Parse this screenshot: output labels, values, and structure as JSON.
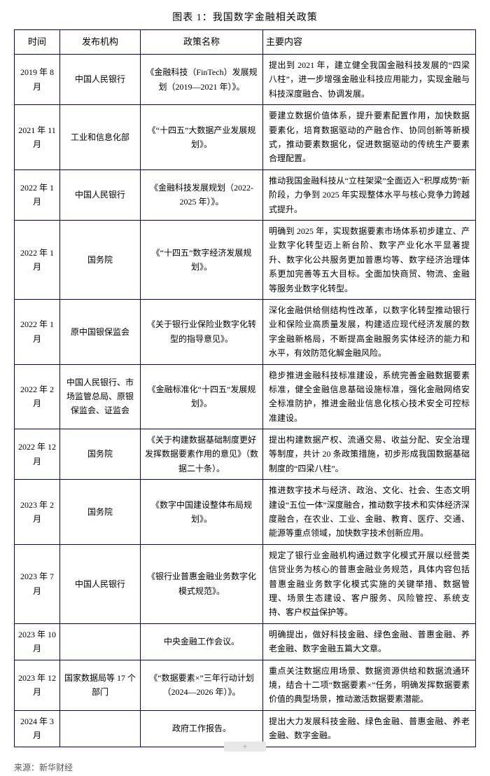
{
  "title": "图表 1：我国数字金融相关政策",
  "columns": [
    "时间",
    "发布机构",
    "政策名称",
    "主要内容"
  ],
  "rows": [
    {
      "time": "2019 年 8 月",
      "org": "中国人民银行",
      "policy": "《金融科技（FinTech）发展规划（2019—2021 年）》。",
      "content": "提出到 2021 年，建立健全我国金融科技发展的“四梁八柱”，进一步增强金融业科技应用能力，实现金融与科技深度融合、协调发展。"
    },
    {
      "time": "2021 年 11 月",
      "org": "工业和信息化部",
      "policy": "《“十四五”大数据产业发展规划》。",
      "content": "要建立数据价值体系，提升要素配置作用，加快数据要素化，培育数据驱动的产融合作、协同创新等新模式，推动要素数据化，促进数据驱动的传统生产要素合理配置。"
    },
    {
      "time": "2022 年 1 月",
      "org": "中国人民银行",
      "policy": "《金融科技发展规划（2022-2025 年）》。",
      "content": "推动我国金融科技从“立柱架梁”全面迈入“积厚成势”新阶段，力争到 2025 年实现整体水平与核心竞争力跨越式提升。"
    },
    {
      "time": "2022 年 1 月",
      "org": "国务院",
      "policy": "《“十四五”数字经济发展规划》。",
      "content": "明确到 2025 年，实现数据要素市场体系初步建立、产业数字化转型迈上新台阶、数字产业化水平显著提升、数字化公共服务更加普惠均等、数字经济治理体系更加完善等五大目标。全面加快商贸、物流、金融等服务业数字化转型。"
    },
    {
      "time": "2022 年 1 月",
      "org": "原中国银保监会",
      "policy": "《关于银行业保险业数字化转型的指导意见》。",
      "content": "深化金融供给侧结构性改革，以数字化转型推动银行业和保险业高质量发展，构建适应现代经济发展的数字金融新格局，不断提高金融服务实体经济的能力和水平，有效防范化解金融风险。"
    },
    {
      "time": "2022 年 2 月",
      "org": "中国人民银行、市场监管总局、原银保监会、证监会",
      "policy": "《金融标准化“十四五”发展规划》。",
      "content": "稳步推进金融科技标准建设，系统完善金融数据要素标准，健全金融信息基础设施标准，强化金融网络安全标准防护，推进金融业信息化核心技术安全可控标准建设。"
    },
    {
      "time": "2022 年 12 月",
      "org": "国务院",
      "policy": "《关于构建数据基础制度更好发挥数据要素作用的意见》（数据二十条）。",
      "content": "提出构建数据产权、流通交易、收益分配、安全治理等制度，共计 20 条政策措施，初步形成我国数据基础制度的“四梁八柱”。"
    },
    {
      "time": "2023 年 2 月",
      "org": "国务院",
      "policy": "《数字中国建设整体布局规划》。",
      "content": "推进数字技术与经济、政治、文化、社会、生态文明建设“五位一体”深度融合，推动数字技术和实体经济深度融合，在农业、工业、金融、教育、医疗、交通、能源等重点领域，加快数字技术创新应用。"
    },
    {
      "time": "2023 年 7 月",
      "org": "中国人民银行",
      "policy": "《银行业普惠金融业务数字化模式规范》。",
      "content": "规定了银行业金融机构通过数字化模式开展以经营类信贷业务为核心的普惠金融业务规范，具体内容包括普惠金融业务数字化模式实施的关键举措、数据管理、场景生态建设、客户服务、风险管控、系统支持、客户权益保护等。"
    },
    {
      "time": "2023 年 10 月",
      "org": "",
      "policy": "中央金融工作会议。",
      "content": "明确提出，做好科技金融、绿色金融、普惠金融、养老金融、数字金融五篇大文章。"
    },
    {
      "time": "2023 年 12 月",
      "org": "国家数据局等 17 个部门",
      "policy": "《“数据要素×”三年行动计划（2024—2026 年）》。",
      "content": "重点关注数据应用场景、数据资源供给和数据流通环境，结合十二项“数据要素×”任务，明确发挥数据要素价值的典型场景，推动激活数据要素潜能。"
    },
    {
      "time": "2024 年 3 月",
      "org": "",
      "policy": "政府工作报告。",
      "content": "提出大力发展科技金融、绿色金融、普惠金融、养老金融、数字金融。"
    }
  ],
  "source": "来源：新华财经",
  "colors": {
    "border": "#000080",
    "text": "#000000",
    "source": "#555555",
    "plus_bg": "#e8e8e8"
  }
}
